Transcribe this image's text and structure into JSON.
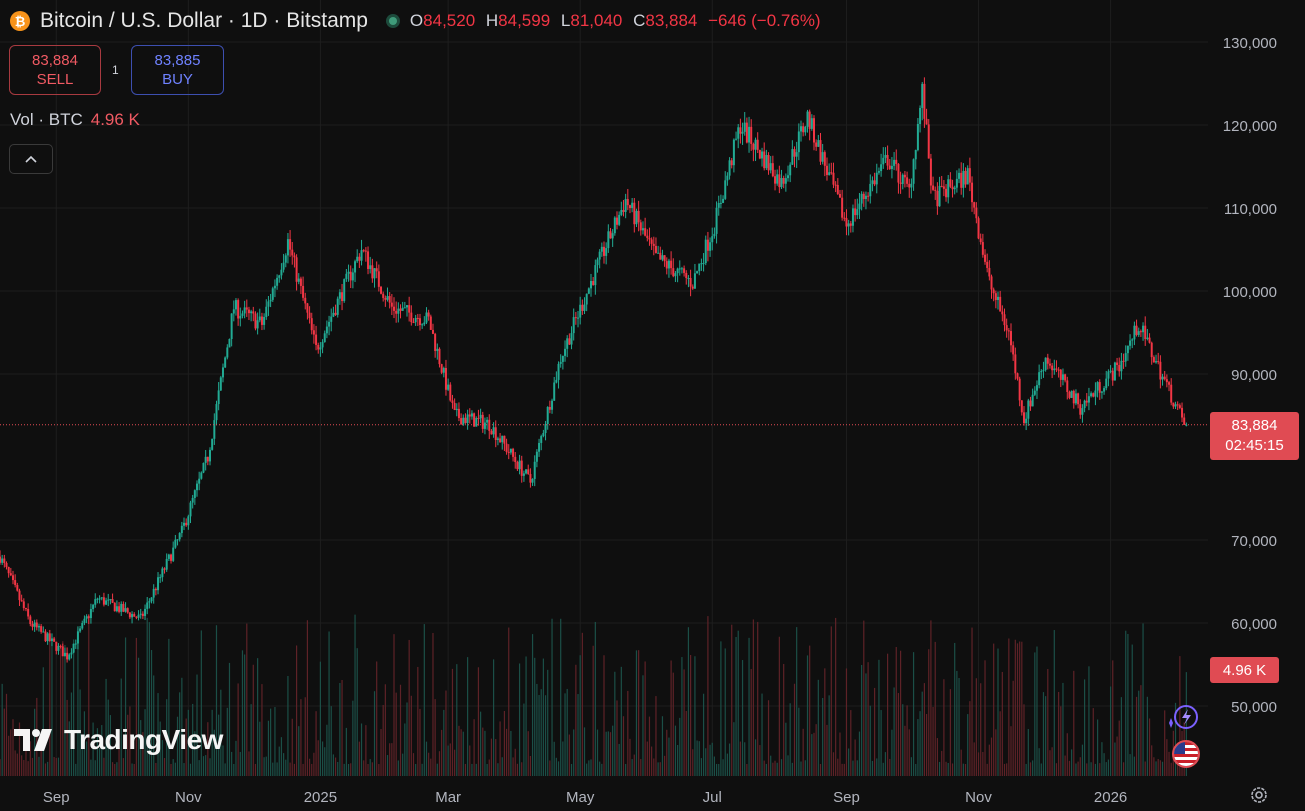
{
  "header": {
    "coin_icon": "bitcoin-icon",
    "coin_glyph": "₿",
    "title": "Bitcoin / U.S. Dollar · 1D · Bitstamp",
    "ohlc": {
      "o_label": "O",
      "o_value": "84,520",
      "h_label": "H",
      "h_value": "84,599",
      "l_label": "L",
      "l_value": "81,040",
      "c_label": "C",
      "c_value": "83,884",
      "change": "−646 (−0.76%)"
    }
  },
  "trade": {
    "sell_price": "83,884",
    "sell_label": "SELL",
    "spread": "1",
    "buy_price": "83,885",
    "buy_label": "BUY"
  },
  "volume_legend": {
    "label": "Vol · BTC",
    "value": "4.96 K"
  },
  "collapse_icon": "chevron-up-icon",
  "last_price": {
    "price": "83,884",
    "countdown": "02:45:15"
  },
  "volume_tag": "4.96 K",
  "branding": "TradingView",
  "colors": {
    "up": "#22ab94",
    "down": "#f23645",
    "background": "#0f0f0f",
    "grid": "#1e1e1e"
  },
  "chart_data": {
    "type": "candlestick",
    "ylim": [
      40000,
      133000
    ],
    "y_ticks": [
      {
        "value": 130000,
        "label": "130,000"
      },
      {
        "value": 120000,
        "label": "120,000"
      },
      {
        "value": 110000,
        "label": "110,000"
      },
      {
        "value": 100000,
        "label": "100,000"
      },
      {
        "value": 90000,
        "label": "90,000"
      },
      {
        "value": 70000,
        "label": "70,000"
      },
      {
        "value": 60000,
        "label": "60,000"
      },
      {
        "value": 50000,
        "label": "50,000"
      }
    ],
    "x_ticks": [
      {
        "date": "2024-09-01",
        "label": "Sep"
      },
      {
        "date": "2024-11-01",
        "label": "Nov"
      },
      {
        "date": "2025-01-01",
        "label": "2025"
      },
      {
        "date": "2025-03-01",
        "label": "Mar"
      },
      {
        "date": "2025-05-01",
        "label": "May"
      },
      {
        "date": "2025-07-01",
        "label": "Jul"
      },
      {
        "date": "2025-09-01",
        "label": "Sep"
      },
      {
        "date": "2025-11-01",
        "label": "Nov"
      },
      {
        "date": "2026-01-01",
        "label": "2026"
      }
    ],
    "x_range": [
      "2024-08-06",
      "2026-02-15"
    ],
    "last_price_value": 83884,
    "price_path": [
      [
        "2024-08-06",
        68000
      ],
      [
        "2024-08-20",
        60000
      ],
      [
        "2024-09-06",
        56000
      ],
      [
        "2024-09-20",
        63000
      ],
      [
        "2024-10-10",
        60500
      ],
      [
        "2024-10-29",
        71000
      ],
      [
        "2024-11-10",
        80000
      ],
      [
        "2024-11-22",
        98000
      ],
      [
        "2024-12-05",
        96000
      ],
      [
        "2024-12-17",
        106000
      ],
      [
        "2024-12-30",
        93000
      ],
      [
        "2025-01-20",
        105000
      ],
      [
        "2025-02-03",
        98000
      ],
      [
        "2025-02-20",
        96500
      ],
      [
        "2025-03-04",
        85000
      ],
      [
        "2025-03-20",
        84000
      ],
      [
        "2025-04-08",
        77000
      ],
      [
        "2025-04-22",
        92000
      ],
      [
        "2025-05-09",
        103000
      ],
      [
        "2025-05-22",
        111000
      ],
      [
        "2025-06-05",
        104000
      ],
      [
        "2025-06-22",
        101000
      ],
      [
        "2025-07-02",
        108000
      ],
      [
        "2025-07-14",
        120000
      ],
      [
        "2025-08-02",
        113000
      ],
      [
        "2025-08-14",
        121000
      ],
      [
        "2025-09-01",
        108000
      ],
      [
        "2025-09-20",
        116000
      ],
      [
        "2025-09-30",
        112000
      ],
      [
        "2025-10-06",
        124000
      ],
      [
        "2025-10-11",
        111000
      ],
      [
        "2025-10-27",
        114000
      ],
      [
        "2025-11-06",
        101000
      ],
      [
        "2025-11-15",
        95000
      ],
      [
        "2025-11-22",
        84500
      ],
      [
        "2025-12-02",
        92000
      ],
      [
        "2025-12-18",
        86000
      ],
      [
        "2026-01-05",
        91000
      ],
      [
        "2026-01-14",
        96000
      ],
      [
        "2026-01-28",
        88000
      ],
      [
        "2026-02-04",
        84000
      ],
      [
        "2026-02-05",
        83884
      ]
    ]
  }
}
